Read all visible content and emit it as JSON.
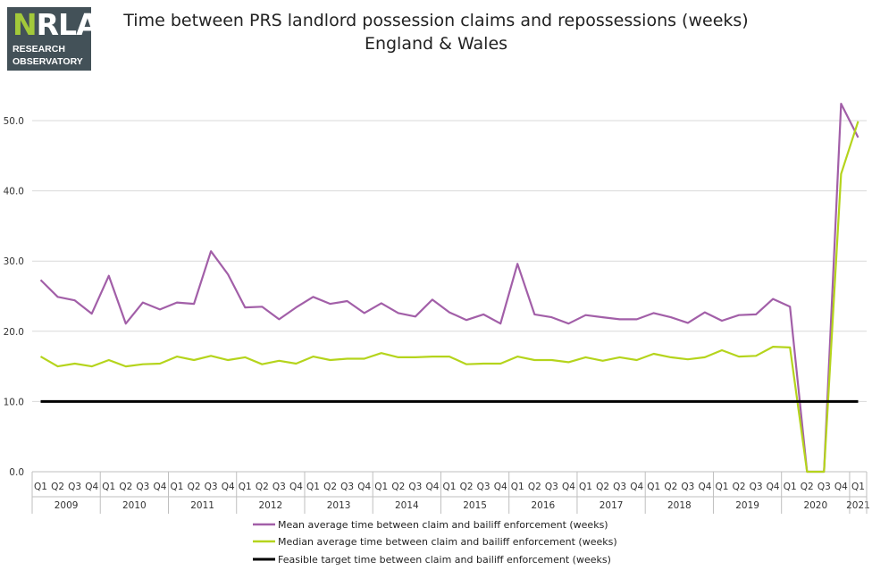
{
  "logo": {
    "brand_n": "N",
    "brand_rest": "RLA",
    "line1": "RESEARCH",
    "line2": "OBSERVATORY"
  },
  "chart_data": {
    "type": "line",
    "title": "Time between PRS landlord possession claims and repossessions (weeks)",
    "subtitle": "England & Wales",
    "xlabel": "",
    "ylabel": "",
    "ylim": [
      0,
      50
    ],
    "yticks": [
      "0.0",
      "10.0",
      "20.0",
      "30.0",
      "40.0",
      "50.0"
    ],
    "grid": true,
    "legend_position": "bottom",
    "quarters": [
      "Q1",
      "Q2",
      "Q3",
      "Q4",
      "Q1",
      "Q2",
      "Q3",
      "Q4",
      "Q1",
      "Q2",
      "Q3",
      "Q4",
      "Q1",
      "Q2",
      "Q3",
      "Q4",
      "Q1",
      "Q2",
      "Q3",
      "Q4",
      "Q1",
      "Q2",
      "Q3",
      "Q4",
      "Q1",
      "Q2",
      "Q3",
      "Q4",
      "Q1",
      "Q2",
      "Q3",
      "Q4",
      "Q1",
      "Q2",
      "Q3",
      "Q4",
      "Q1",
      "Q2",
      "Q3",
      "Q4",
      "Q1",
      "Q2",
      "Q3",
      "Q4",
      "Q1",
      "Q2",
      "Q3",
      "Q4",
      "Q1"
    ],
    "years": [
      "2009",
      "2010",
      "2011",
      "2012",
      "2013",
      "2014",
      "2015",
      "2016",
      "2017",
      "2018",
      "2019",
      "2020",
      "2021"
    ],
    "series": [
      {
        "name": "Mean average time between claim and bailiff enforcement (weeks)",
        "color": "#a25fa8",
        "values": [
          27.3,
          24.9,
          24.4,
          22.5,
          27.9,
          21.1,
          24.1,
          23.1,
          24.1,
          23.9,
          31.4,
          28.1,
          23.4,
          23.5,
          21.7,
          23.4,
          24.9,
          23.9,
          24.3,
          22.6,
          24.0,
          22.6,
          22.1,
          24.5,
          22.7,
          21.6,
          22.4,
          21.1,
          29.6,
          22.4,
          22.0,
          21.1,
          22.3,
          22.0,
          21.7,
          21.7,
          22.6,
          22.0,
          21.2,
          22.7,
          21.5,
          22.3,
          22.4,
          24.6,
          23.5,
          0.0,
          0.0,
          52.4,
          47.6
        ]
      },
      {
        "name": "Median average time between claim and bailiff enforcement (weeks)",
        "color": "#b5d41c",
        "values": [
          16.4,
          15.0,
          15.4,
          15.0,
          15.9,
          15.0,
          15.3,
          15.4,
          16.4,
          15.9,
          16.5,
          15.9,
          16.3,
          15.3,
          15.8,
          15.4,
          16.4,
          15.9,
          16.1,
          16.1,
          16.9,
          16.3,
          16.3,
          16.4,
          16.4,
          15.3,
          15.4,
          15.4,
          16.4,
          15.9,
          15.9,
          15.6,
          16.3,
          15.8,
          16.3,
          15.9,
          16.8,
          16.3,
          16.0,
          16.3,
          17.3,
          16.4,
          16.5,
          17.8,
          17.7,
          0.0,
          0.0,
          42.4,
          49.9
        ]
      },
      {
        "name": "Feasible target time between claim and bailiff enforcement (weeks)",
        "color": "#000000",
        "values": [
          10,
          10,
          10,
          10,
          10,
          10,
          10,
          10,
          10,
          10,
          10,
          10,
          10,
          10,
          10,
          10,
          10,
          10,
          10,
          10,
          10,
          10,
          10,
          10,
          10,
          10,
          10,
          10,
          10,
          10,
          10,
          10,
          10,
          10,
          10,
          10,
          10,
          10,
          10,
          10,
          10,
          10,
          10,
          10,
          10,
          10,
          10,
          10,
          10
        ]
      }
    ]
  }
}
